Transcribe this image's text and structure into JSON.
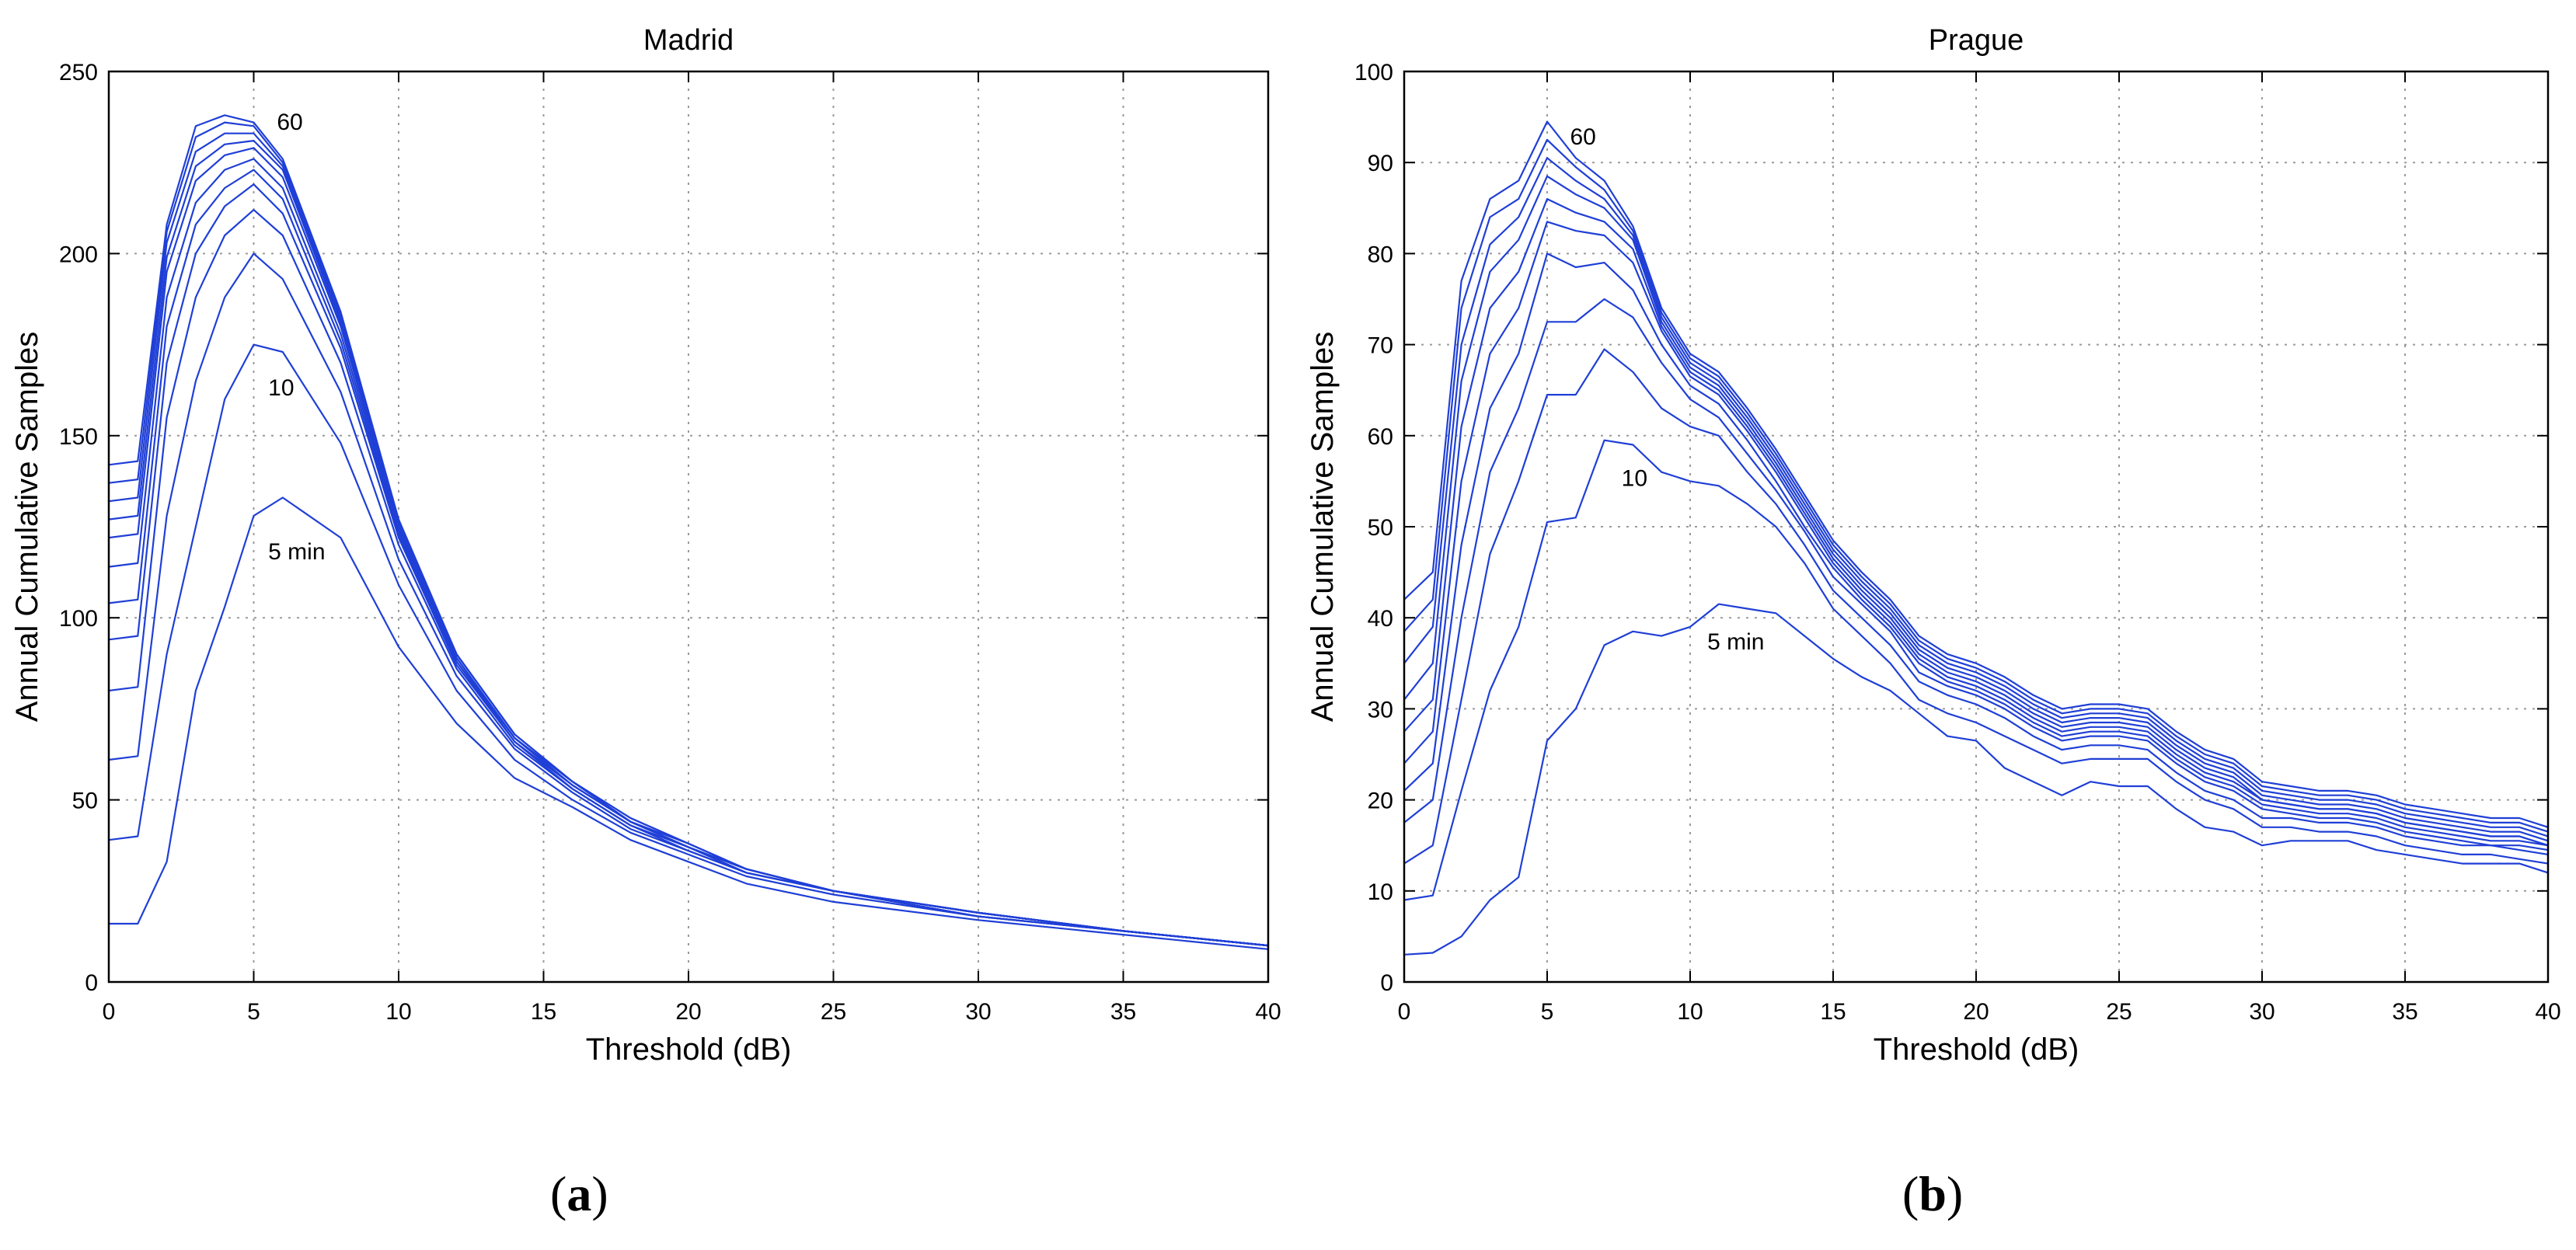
{
  "chart_data": [
    {
      "type": "line",
      "title": "Madrid",
      "xlabel": "Threshold (dB)",
      "ylabel": "Annual Cumulative Samples",
      "xlim": [
        0,
        40
      ],
      "ylim": [
        0,
        250
      ],
      "xticks": [
        0,
        5,
        10,
        15,
        20,
        25,
        30,
        35,
        40
      ],
      "yticks": [
        0,
        50,
        100,
        150,
        200,
        250
      ],
      "grid": true,
      "line_color": "#1f3fd6",
      "x": [
        0,
        1,
        2,
        3,
        4,
        5,
        6,
        8,
        10,
        12,
        14,
        16,
        18,
        20,
        22,
        25,
        30,
        35,
        40
      ],
      "series": [
        {
          "values": [
            16,
            16,
            33,
            80,
            103,
            128,
            133,
            122,
            92,
            71,
            56,
            48,
            39,
            33,
            27,
            22,
            17,
            13,
            9
          ]
        },
        {
          "values": [
            39,
            40,
            90,
            125,
            160,
            175,
            173,
            148,
            109,
            80,
            61,
            50,
            41,
            35,
            29,
            24,
            18,
            14,
            10
          ]
        },
        {
          "values": [
            61,
            62,
            128,
            165,
            188,
            200,
            193,
            162,
            116,
            84,
            64,
            52,
            42,
            36,
            30,
            25,
            18,
            14,
            10
          ]
        },
        {
          "values": [
            80,
            81,
            155,
            188,
            205,
            212,
            205,
            170,
            120,
            86,
            65,
            53,
            43,
            36,
            30,
            25,
            18,
            14,
            10
          ]
        },
        {
          "values": [
            94,
            95,
            170,
            200,
            213,
            219,
            211,
            174,
            122,
            87,
            66,
            53,
            43,
            37,
            30,
            25,
            19,
            14,
            10
          ]
        },
        {
          "values": [
            104,
            105,
            180,
            208,
            218,
            223,
            215,
            176,
            123,
            88,
            66,
            54,
            44,
            37,
            30,
            25,
            19,
            14,
            10
          ]
        },
        {
          "values": [
            114,
            115,
            188,
            214,
            223,
            226,
            218,
            178,
            124,
            88,
            67,
            54,
            44,
            37,
            31,
            25,
            19,
            14,
            10
          ]
        },
        {
          "values": [
            122,
            123,
            195,
            220,
            227,
            229,
            221,
            180,
            125,
            89,
            67,
            54,
            44,
            37,
            31,
            25,
            19,
            14,
            10
          ]
        },
        {
          "values": [
            127,
            128,
            199,
            224,
            230,
            231,
            223,
            181,
            125,
            89,
            67,
            55,
            44,
            37,
            31,
            25,
            19,
            14,
            10
          ]
        },
        {
          "values": [
            132,
            133,
            203,
            228,
            233,
            233,
            224,
            182,
            126,
            90,
            68,
            55,
            44,
            38,
            31,
            25,
            19,
            14,
            10
          ]
        },
        {
          "values": [
            137,
            138,
            206,
            232,
            236,
            235,
            225,
            183,
            126,
            90,
            68,
            55,
            45,
            38,
            31,
            25,
            19,
            14,
            10
          ]
        },
        {
          "values": [
            142,
            143,
            208,
            235,
            238,
            236,
            226,
            184,
            127,
            90,
            68,
            55,
            45,
            38,
            31,
            25,
            19,
            14,
            10
          ]
        }
      ],
      "annotations": [
        {
          "text": "60",
          "x": 5.8,
          "y": 234
        },
        {
          "text": "10",
          "x": 5.5,
          "y": 161
        },
        {
          "text": "5 min",
          "x": 5.5,
          "y": 116
        }
      ]
    },
    {
      "type": "line",
      "title": "Prague",
      "xlabel": "Threshold (dB)",
      "ylabel": "Annual Cumulative Samples",
      "xlim": [
        0,
        40
      ],
      "ylim": [
        0,
        100
      ],
      "xticks": [
        0,
        5,
        10,
        15,
        20,
        25,
        30,
        35,
        40
      ],
      "yticks": [
        0,
        10,
        20,
        30,
        40,
        50,
        60,
        70,
        80,
        90,
        100
      ],
      "grid": true,
      "line_color": "#1f3fd6",
      "x": [
        0,
        1,
        2,
        3,
        4,
        5,
        6,
        7,
        8,
        9,
        10,
        11,
        12,
        13,
        14,
        15,
        16,
        17,
        18,
        19,
        20,
        21,
        22,
        23,
        24,
        25,
        26,
        27,
        28,
        29,
        30,
        31,
        32,
        33,
        34,
        35,
        36,
        37,
        38,
        39,
        40
      ],
      "series": [
        {
          "values": [
            3,
            3.2,
            5,
            9,
            11.5,
            26.5,
            30,
            37,
            38.5,
            38,
            39,
            41.5,
            41,
            40.5,
            38,
            35.5,
            33.5,
            32,
            29.5,
            27,
            26.5,
            23.5,
            22,
            20.5,
            22,
            21.5,
            21.5,
            19,
            17,
            16.5,
            15,
            15.5,
            15.5,
            15.5,
            14.5,
            14,
            13.5,
            13,
            13,
            13,
            12
          ]
        },
        {
          "values": [
            9,
            9.5,
            21,
            32,
            39,
            50.5,
            51,
            59.5,
            59,
            56,
            55,
            54.5,
            52.5,
            50,
            46,
            41,
            38,
            35,
            31,
            29.5,
            28.5,
            27,
            25.5,
            24,
            24.5,
            24.5,
            24.5,
            22,
            20,
            19,
            17,
            17,
            16.5,
            16.5,
            16,
            15,
            14.5,
            14,
            14,
            13.5,
            13
          ]
        },
        {
          "values": [
            13,
            15,
            31,
            47,
            55,
            64.5,
            64.5,
            69.5,
            67,
            63,
            61,
            60,
            56,
            52.5,
            48,
            43,
            40,
            37,
            33,
            31.5,
            30.5,
            29,
            27,
            25.5,
            26,
            26,
            25.5,
            23,
            21,
            20,
            18,
            18,
            17.5,
            17.5,
            17,
            16,
            15.5,
            15,
            15,
            14.5,
            14
          ]
        },
        {
          "values": [
            17.5,
            20,
            40,
            56,
            63,
            72.5,
            72.5,
            75,
            73,
            68,
            64,
            62,
            58,
            54,
            49.5,
            44.5,
            41.5,
            38.5,
            34,
            32.5,
            31.5,
            30,
            28,
            26.5,
            27,
            27,
            26.5,
            24,
            22,
            21,
            19,
            18.5,
            18,
            18,
            17.5,
            16.5,
            16,
            15.5,
            15,
            15,
            14.5
          ]
        },
        {
          "values": [
            21,
            24,
            48,
            63,
            69,
            80,
            78.5,
            79,
            76,
            70,
            65.5,
            63.5,
            59.5,
            55,
            50,
            45.5,
            42,
            39,
            35,
            33,
            32,
            30.5,
            28.5,
            27,
            27.5,
            27.5,
            27,
            24.5,
            22.5,
            21.5,
            19.5,
            19,
            18.5,
            18.5,
            18,
            17,
            16.5,
            16,
            15.5,
            15.5,
            15
          ]
        },
        {
          "values": [
            24,
            27.5,
            55,
            69,
            74,
            83.5,
            82.5,
            82,
            79,
            71.5,
            66.5,
            64.5,
            60.5,
            56,
            51,
            46,
            42.5,
            39.5,
            35.5,
            33.5,
            32.5,
            31,
            29,
            27.5,
            28,
            28,
            27.5,
            25,
            23,
            22,
            20,
            19.5,
            19,
            19,
            18.5,
            17.5,
            17,
            16.5,
            16,
            16,
            15
          ]
        },
        {
          "values": [
            27.5,
            31,
            61,
            74,
            78,
            86,
            84.5,
            83.5,
            80.5,
            72,
            67,
            65,
            61,
            56.5,
            51.5,
            46.5,
            43,
            40,
            36,
            34,
            33,
            31.5,
            29.5,
            28,
            28.5,
            28.5,
            28,
            25.5,
            23.5,
            22.5,
            20,
            19.5,
            19,
            19,
            18.5,
            17.5,
            17,
            16.5,
            16,
            16,
            15
          ]
        },
        {
          "values": [
            31,
            35,
            66,
            78,
            81.5,
            88.5,
            86.5,
            85,
            81.5,
            72.5,
            67.5,
            65.5,
            61.5,
            57,
            52,
            47,
            43.5,
            40.5,
            36.5,
            34.5,
            33.5,
            32,
            30,
            28.5,
            29,
            29,
            28.5,
            26,
            24,
            23,
            20.5,
            20,
            19.5,
            19.5,
            19,
            18,
            17.5,
            17,
            16.5,
            16.5,
            15.5
          ]
        },
        {
          "values": [
            35,
            39,
            70,
            81,
            84,
            90.5,
            88,
            86,
            82,
            73,
            68,
            66,
            62,
            57.5,
            52.5,
            47.5,
            44,
            41,
            37,
            35,
            34,
            32.5,
            30.5,
            29,
            29.5,
            29.5,
            29,
            26.5,
            24.5,
            23.5,
            21,
            20.5,
            20,
            20,
            19.5,
            18.5,
            18,
            17.5,
            17,
            17,
            16
          ]
        },
        {
          "values": [
            38.5,
            42,
            74,
            84,
            86,
            92.5,
            89.5,
            87,
            82.5,
            73.5,
            68.5,
            66.5,
            62.5,
            58,
            53,
            48,
            44.5,
            41.5,
            37.5,
            35.5,
            34.5,
            33,
            31,
            29.5,
            30,
            30,
            29.5,
            27,
            25,
            24,
            21.5,
            21,
            20.5,
            20.5,
            20,
            19,
            18.5,
            18,
            17.5,
            17.5,
            16.5
          ]
        },
        {
          "values": [
            42,
            45,
            77,
            86,
            88,
            94.5,
            90.5,
            88,
            83,
            74,
            69,
            67,
            63,
            58.5,
            53.5,
            48.5,
            45,
            42,
            38,
            36,
            35,
            33.5,
            31.5,
            30,
            30.5,
            30.5,
            30,
            27.5,
            25.5,
            24.5,
            22,
            21.5,
            21,
            21,
            20.5,
            19.5,
            19,
            18.5,
            18,
            18,
            17
          ]
        }
      ],
      "annotations": [
        {
          "text": "60",
          "x": 5.8,
          "y": 92
        },
        {
          "text": "10",
          "x": 7.6,
          "y": 54.5
        },
        {
          "text": "5 min",
          "x": 10.6,
          "y": 36.5
        }
      ]
    }
  ],
  "captions": [
    {
      "letter": "a"
    },
    {
      "letter": "b"
    }
  ]
}
